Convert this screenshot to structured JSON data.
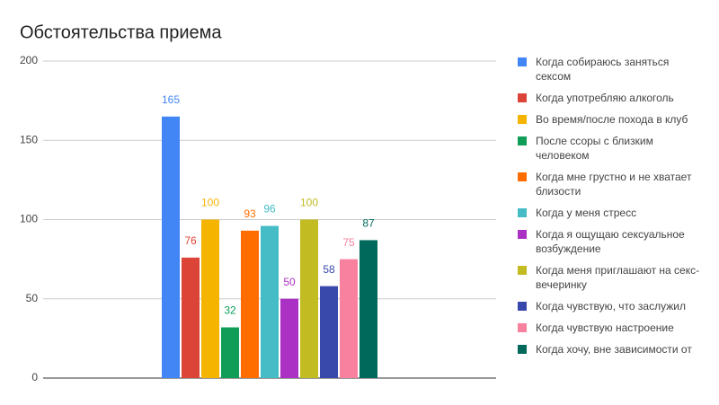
{
  "chart_data": {
    "type": "bar",
    "title": "Обстоятельства приема",
    "categories": [
      null
    ],
    "ylim": [
      0,
      200
    ],
    "yticks": [
      0,
      50,
      100,
      150,
      200
    ],
    "grid": true,
    "legend": "right",
    "data_labels": true,
    "series": [
      {
        "name": "Когда собираюсь заняться сексом",
        "color": "#4285f4",
        "values": [
          165
        ]
      },
      {
        "name": "Когда употребляю алкоголь",
        "color": "#db4437",
        "values": [
          76
        ]
      },
      {
        "name": "Во время/после похода в клуб",
        "color": "#f4b400",
        "values": [
          100
        ]
      },
      {
        "name": "После ссоры с близким человеком",
        "color": "#0f9d58",
        "values": [
          32
        ]
      },
      {
        "name": "Когда мне грустно и не хватает близости",
        "color": "#ff6d00",
        "values": [
          93
        ]
      },
      {
        "name": "Когда у меня стресс",
        "color": "#46bdc6",
        "values": [
          96
        ]
      },
      {
        "name": "Когда я ощущаю сексуальное возбуждение",
        "color": "#ab30c4",
        "values": [
          50
        ]
      },
      {
        "name": "Когда меня приглашают на секс-вечеринку",
        "color": "#c2bb21",
        "values": [
          100
        ]
      },
      {
        "name": "Когда чувствую, что заслужил",
        "color": "#3949ab",
        "values": [
          58
        ]
      },
      {
        "name": "Когда чувствую настроение",
        "color": "#f7819e",
        "values": [
          75
        ]
      },
      {
        "name": "Когда хочу, вне зависимости от",
        "color": "#00695c",
        "values": [
          87
        ]
      }
    ]
  }
}
